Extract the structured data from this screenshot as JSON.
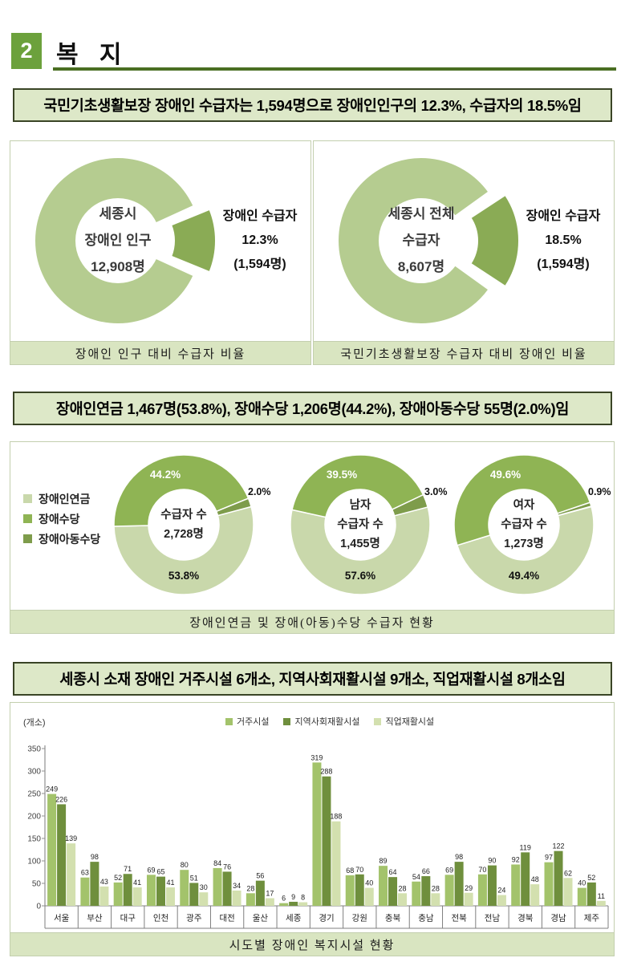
{
  "page": {
    "section_number": "2",
    "section_title": "복 지"
  },
  "statements": [
    "국민기초생활보장 장애인 수급자는 1,594명으로 장애인인구의 12.3%, 수급자의 18.5%임",
    "장애인연금 1,467명(53.8%), 장애수당 1,206명(44.2%), 장애아동수당 55명(2.0%)임",
    "세종시 소재 장애인 거주시설 6개소, 지역사회재활시설 9개소, 직업재활시설 8개소임"
  ],
  "colors": {
    "accent_green": "#6ca13c",
    "title_rule": "#4a6e22",
    "banner_bg": "#dde8c8",
    "banner_border": "#3a4526",
    "caption_bg": "#d9e5c1",
    "panel_border": "#c3cfae"
  },
  "chart_data": [
    {
      "id": "disabled-population-vs-recipients",
      "type": "pie",
      "variant": "exploded-donut",
      "title": "장애인 인구 대비 수급자 비율",
      "center_label": [
        "세종시",
        "장애인 인구",
        "12,908명"
      ],
      "slices": [
        {
          "label": "세종시 장애인 인구",
          "pct": 87.7,
          "color": "#b5cc90"
        },
        {
          "label": "장애인 수급자",
          "pct": 12.3,
          "color": "#8aab55",
          "exploded": true,
          "callout": [
            "장애인 수급자",
            "12.3%",
            "(1,594명)"
          ]
        }
      ]
    },
    {
      "id": "basic-livelihood-recipients-vs-disabled",
      "type": "pie",
      "variant": "exploded-donut",
      "title": "국민기초생활보장 수급자 대비 장애인 비율",
      "center_label": [
        "세종시 전체",
        "수급자",
        "8,607명"
      ],
      "slices": [
        {
          "label": "세종시 전체 수급자",
          "pct": 81.5,
          "color": "#b5cc90"
        },
        {
          "label": "장애인 수급자",
          "pct": 18.5,
          "color": "#8aab55",
          "exploded": true,
          "callout": [
            "장애인 수급자",
            "18.5%",
            "(1,594명)"
          ]
        }
      ]
    },
    {
      "id": "allowance-recipients",
      "type": "pie",
      "variant": "triple-donut",
      "title": "장애인연금 및 장애(아동)수당 수급자 현황",
      "legend": [
        {
          "label": "장애인연금",
          "color": "#c9d8ab"
        },
        {
          "label": "장애수당",
          "color": "#8fb454"
        },
        {
          "label": "장애아동수당",
          "color": "#7e9c4b"
        }
      ],
      "donuts": [
        {
          "center_label": [
            "수급자 수",
            "2,728명"
          ],
          "values": [
            53.8,
            44.2,
            2.0
          ]
        },
        {
          "center_label": [
            "남자",
            "수급자 수",
            "1,455명"
          ],
          "values": [
            57.6,
            39.5,
            3.0
          ]
        },
        {
          "center_label": [
            "여자",
            "수급자 수",
            "1,273명"
          ],
          "values": [
            49.4,
            49.6,
            0.9
          ]
        }
      ]
    },
    {
      "id": "welfare-facilities-by-region",
      "type": "bar",
      "title": "시도별 장애인 복지시설 현황",
      "unit_label": "(개소)",
      "categories": [
        "서울",
        "부산",
        "대구",
        "인천",
        "광주",
        "대전",
        "울산",
        "세종",
        "경기",
        "강원",
        "충북",
        "충남",
        "전북",
        "전남",
        "경북",
        "경남",
        "제주"
      ],
      "series": [
        {
          "name": "거주시설",
          "color": "#a3c36b",
          "values": [
            249,
            63,
            52,
            69,
            80,
            84,
            28,
            6,
            319,
            68,
            89,
            54,
            69,
            70,
            92,
            97,
            40
          ]
        },
        {
          "name": "지역사회재활시설",
          "color": "#6f8f3d",
          "values": [
            226,
            98,
            71,
            65,
            51,
            76,
            56,
            9,
            288,
            70,
            64,
            66,
            98,
            90,
            119,
            122,
            52
          ]
        },
        {
          "name": "직업재활시설",
          "color": "#d3e0af",
          "values": [
            139,
            43,
            41,
            41,
            30,
            34,
            17,
            8,
            188,
            40,
            28,
            28,
            29,
            24,
            48,
            62,
            11
          ]
        }
      ],
      "ylim": [
        0,
        350
      ],
      "ytick_step": 50,
      "legend_position": "top",
      "grid": false
    }
  ]
}
